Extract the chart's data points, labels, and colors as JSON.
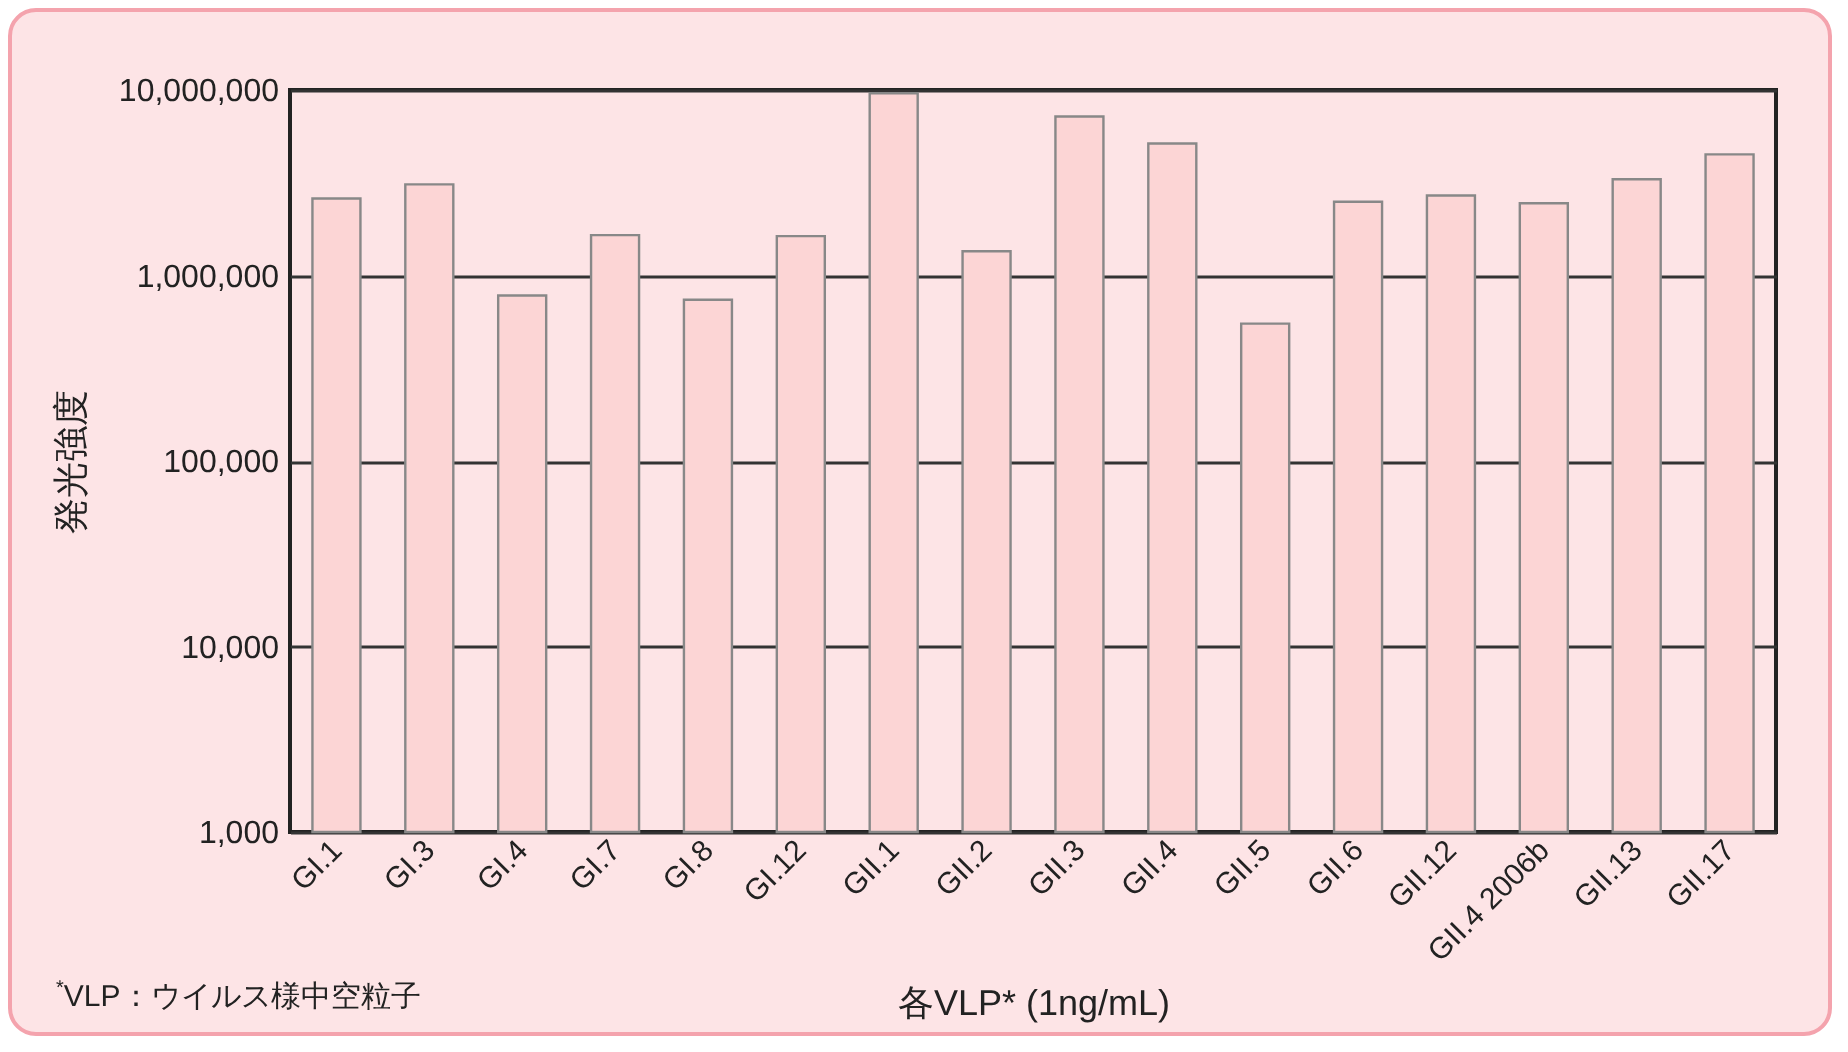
{
  "chart_data": {
    "type": "bar",
    "xlabel": "各VLP* (1ng/mL)",
    "ylabel": "発光強度",
    "annotations": [
      "$^{*}$VLP：ウイルス様中空粒子"
    ],
    "categories": [
      "GI.1",
      "GI.3",
      "GI.4",
      "GI.7",
      "GI.8",
      "GI.12",
      "GII.1",
      "GII.2",
      "GII.3",
      "GII.4",
      "GII.5",
      "GII.6",
      "GII.12",
      "GII.4 2006b",
      "GII.13",
      "GII.17"
    ],
    "values": [
      2600000,
      3100000,
      780000,
      1650000,
      740000,
      1630000,
      9600000,
      1350000,
      7200000,
      5150000,
      550000,
      2500000,
      2700000,
      2450000,
      3300000,
      4500000
    ],
    "color": "#fcd5d5",
    "log": "y",
    "ylim": [
      1000,
      10000000
    ],
    "yticks": [
      {
        "value": 1000,
        "label": "1,000"
      },
      {
        "value": 10000,
        "label": "10,000"
      },
      {
        "value": 100000,
        "label": "100,000"
      },
      {
        "value": 1000000,
        "label": "1,000,000"
      },
      {
        "value": 10000000,
        "label": "10,000,000"
      }
    ],
    "grid": "y"
  }
}
